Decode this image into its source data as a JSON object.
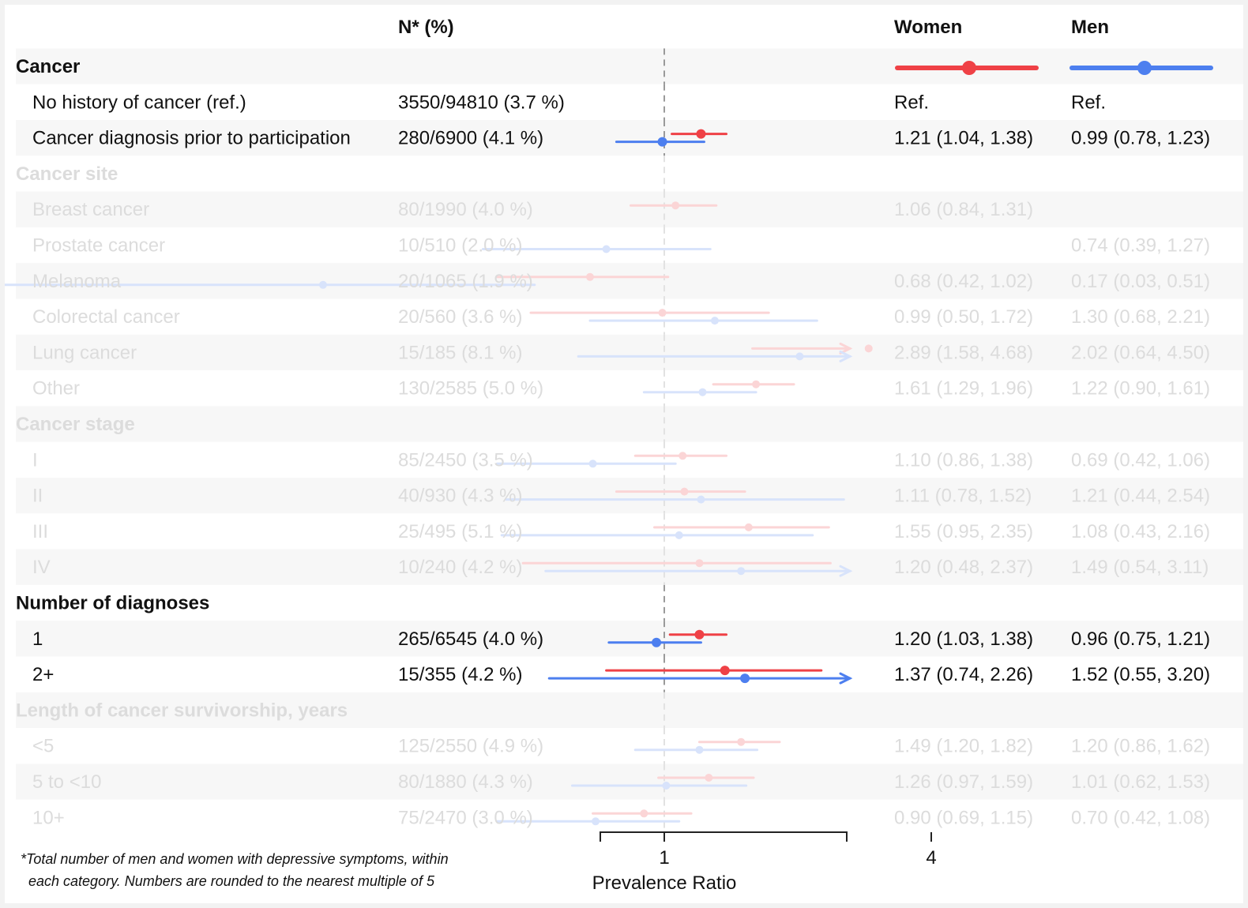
{
  "header": {
    "n_label": "N* (%)",
    "women_label": "Women",
    "men_label": "Men"
  },
  "colors": {
    "women": "#ef4146",
    "men": "#4d7fef",
    "stripe": "#f7f7f7",
    "faded_text": "#dcdcdc"
  },
  "footnote": {
    "line1": "*Total number of men and women with depressive symptoms, within",
    "line2": "each category. Numbers are rounded to the nearest multiple of 5"
  },
  "chart_data": {
    "type": "forest",
    "xlabel": "Prevalence Ratio",
    "x_scale": "log",
    "ref_line": 1,
    "x_ticks": [
      1,
      4
    ],
    "rows": [
      {
        "label": "Cancer",
        "kind": "group",
        "active": true
      },
      {
        "label": "No history of cancer (ref.)",
        "kind": "item",
        "active": true,
        "n": "3550/94810 (3.7 %)",
        "women_text": "Ref.",
        "men_text": "Ref."
      },
      {
        "label": "Cancer diagnosis prior to participation",
        "kind": "item",
        "active": true,
        "n": "280/6900 (4.1 %)",
        "women_text": "1.21 (1.04, 1.38)",
        "men_text": "0.99 (0.78, 1.23)",
        "women": [
          1.21,
          1.04,
          1.38
        ],
        "men": [
          0.99,
          0.78,
          1.23
        ]
      },
      {
        "label": "Cancer site",
        "kind": "group",
        "active": false
      },
      {
        "label": "Breast cancer",
        "kind": "item",
        "active": false,
        "n": "80/1990 (4.0 %)",
        "women_text": "1.06 (0.84, 1.31)",
        "men_text": "",
        "women": [
          1.06,
          0.84,
          1.31
        ]
      },
      {
        "label": "Prostate cancer",
        "kind": "item",
        "active": false,
        "n": "10/510 (2.0 %)",
        "women_text": "",
        "men_text": "0.74 (0.39, 1.27)",
        "men": [
          0.74,
          0.39,
          1.27
        ]
      },
      {
        "label": "Melanoma",
        "kind": "item",
        "active": false,
        "n": "20/1065 (1.9 %)",
        "women_text": "0.68 (0.42, 1.02)",
        "men_text": "0.17 (0.03, 0.51)",
        "women": [
          0.68,
          0.42,
          1.02
        ],
        "men": [
          0.17,
          0.03,
          0.51
        ]
      },
      {
        "label": "Colorectal cancer",
        "kind": "item",
        "active": false,
        "n": "20/560 (3.6 %)",
        "women_text": "0.99 (0.50, 1.72)",
        "men_text": "1.30 (0.68, 2.21)",
        "women": [
          0.99,
          0.5,
          1.72
        ],
        "men": [
          1.3,
          0.68,
          2.21
        ]
      },
      {
        "label": "Lung cancer",
        "kind": "item",
        "active": false,
        "n": "15/185 (8.1 %)",
        "women_text": "2.89 (1.58, 4.68)",
        "men_text": "2.02 (0.64, 4.50)",
        "women": [
          2.89,
          1.58,
          4.68
        ],
        "men": [
          2.02,
          0.64,
          4.5
        ]
      },
      {
        "label": "Other",
        "kind": "item",
        "active": false,
        "n": "130/2585 (5.0 %)",
        "women_text": "1.61 (1.29, 1.96)",
        "men_text": "1.22 (0.90, 1.61)",
        "women": [
          1.61,
          1.29,
          1.96
        ],
        "men": [
          1.22,
          0.9,
          1.61
        ]
      },
      {
        "label": "Cancer stage",
        "kind": "group",
        "active": false
      },
      {
        "label": "I",
        "kind": "item",
        "active": false,
        "n": "85/2450 (3.5 %)",
        "women_text": "1.10 (0.86, 1.38)",
        "men_text": "0.69 (0.42, 1.06)",
        "women": [
          1.1,
          0.86,
          1.38
        ],
        "men": [
          0.69,
          0.42,
          1.06
        ]
      },
      {
        "label": "II",
        "kind": "item",
        "active": false,
        "n": "40/930 (4.3 %)",
        "women_text": "1.11 (0.78, 1.52)",
        "men_text": "1.21 (0.44, 2.54)",
        "women": [
          1.11,
          0.78,
          1.52
        ],
        "men": [
          1.21,
          0.44,
          2.54
        ]
      },
      {
        "label": "III",
        "kind": "item",
        "active": false,
        "n": "25/495 (5.1 %)",
        "women_text": "1.55 (0.95, 2.35)",
        "men_text": "1.08 (0.43, 2.16)",
        "women": [
          1.55,
          0.95,
          2.35
        ],
        "men": [
          1.08,
          0.43,
          2.16
        ]
      },
      {
        "label": "IV",
        "kind": "item",
        "active": false,
        "n": "10/240 (4.2 %)",
        "women_text": "1.20 (0.48, 2.37)",
        "men_text": "1.49 (0.54, 3.11)",
        "women": [
          1.2,
          0.48,
          2.37
        ],
        "men": [
          1.49,
          0.54,
          3.11
        ]
      },
      {
        "label": "Number of diagnoses",
        "kind": "group",
        "active": true
      },
      {
        "label": "1",
        "kind": "item",
        "active": true,
        "n": "265/6545 (4.0 %)",
        "women_text": "1.20 (1.03, 1.38)",
        "men_text": "0.96 (0.75, 1.21)",
        "women": [
          1.2,
          1.03,
          1.38
        ],
        "men": [
          0.96,
          0.75,
          1.21
        ]
      },
      {
        "label": "2+",
        "kind": "item",
        "active": true,
        "n": "15/355 (4.2 %)",
        "women_text": "1.37 (0.74, 2.26)",
        "men_text": "1.52 (0.55, 3.20)",
        "women": [
          1.37,
          0.74,
          2.26
        ],
        "men": [
          1.52,
          0.55,
          3.2
        ]
      },
      {
        "label": "Length of cancer survivorship, years",
        "kind": "group",
        "active": false
      },
      {
        "label": "<5",
        "kind": "item",
        "active": false,
        "n": "125/2550 (4.9 %)",
        "women_text": "1.49 (1.20, 1.82)",
        "men_text": "1.20 (0.86, 1.62)",
        "women": [
          1.49,
          1.2,
          1.82
        ],
        "men": [
          1.2,
          0.86,
          1.62
        ]
      },
      {
        "label": "5 to <10",
        "kind": "item",
        "active": false,
        "n": "80/1880 (4.3 %)",
        "women_text": "1.26 (0.97, 1.59)",
        "men_text": "1.01 (0.62, 1.53)",
        "women": [
          1.26,
          0.97,
          1.59
        ],
        "men": [
          1.01,
          0.62,
          1.53
        ]
      },
      {
        "label": "10+",
        "kind": "item",
        "active": false,
        "n": "75/2470 (3.0 %)",
        "women_text": "0.90 (0.69, 1.15)",
        "men_text": "0.70 (0.42, 1.08)",
        "women": [
          0.9,
          0.69,
          1.15
        ],
        "men": [
          0.7,
          0.42,
          1.08
        ]
      }
    ]
  }
}
